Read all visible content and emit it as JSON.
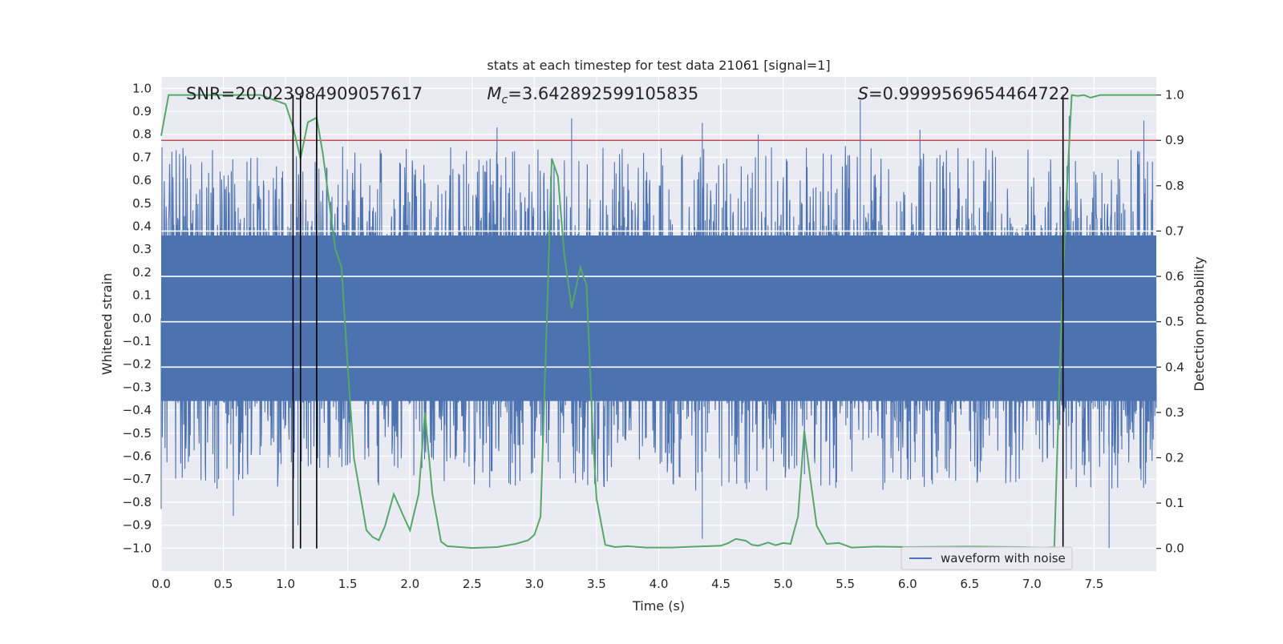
{
  "chart_data": {
    "type": "line",
    "title": "stats at each timestep for test data 21061 [signal=1]",
    "xlabel": "Time (s)",
    "ylabel": "Whitened strain",
    "y2label": "Detection probability",
    "xlim": [
      0.0,
      8.0
    ],
    "ylim": [
      -1.1,
      1.05
    ],
    "y2lim": [
      -0.05,
      1.04
    ],
    "xticks": [
      0.0,
      0.5,
      1.0,
      1.5,
      2.0,
      2.5,
      3.0,
      3.5,
      4.0,
      4.5,
      5.0,
      5.5,
      6.0,
      6.5,
      7.0,
      7.5
    ],
    "xtick_labels": [
      "0.0",
      "0.5",
      "1.0",
      "1.5",
      "2.0",
      "2.5",
      "3.0",
      "3.5",
      "4.0",
      "4.5",
      "5.0",
      "5.5",
      "6.0",
      "6.5",
      "7.0",
      "7.5"
    ],
    "yticks": [
      1.0,
      0.9,
      0.8,
      0.7,
      0.6,
      0.5,
      0.4,
      0.3,
      0.2,
      0.1,
      0.0,
      -0.1,
      -0.2,
      -0.3,
      -0.4,
      -0.5,
      -0.6,
      -0.7,
      -0.8,
      -0.9,
      -1.0
    ],
    "ytick_labels": [
      "1.0",
      "0.9",
      "0.8",
      "0.7",
      "0.6",
      "0.5",
      "0.4",
      "0.3",
      "0.2",
      "0.1",
      "0.0",
      "−0.1",
      "−0.2",
      "−0.3",
      "−0.4",
      "−0.5",
      "−0.6",
      "−0.7",
      "−0.8",
      "−0.9",
      "−1.0"
    ],
    "y2ticks": [
      1.0,
      0.9,
      0.8,
      0.7,
      0.6,
      0.5,
      0.4,
      0.3,
      0.2,
      0.1,
      0.0
    ],
    "y2tick_labels": [
      "1.0",
      "0.9",
      "0.8",
      "0.7",
      "0.6",
      "0.5",
      "0.4",
      "0.3",
      "0.2",
      "0.1",
      "0.0"
    ],
    "legend": {
      "entries": [
        "waveform with noise"
      ],
      "placement": "lower-right"
    },
    "annotations": {
      "snr": "SNR=20.023984909057617",
      "mc_symbol": "M",
      "mc_sub": "c",
      "mc_value": "=3.642892599105835",
      "s_symbol": "S",
      "s_value": "=0.9999569654464722"
    },
    "threshold": {
      "axis": "y2",
      "value": 0.9,
      "color": "#c44e52"
    },
    "vertical_markers": [
      1.06,
      1.12,
      1.25,
      7.25
    ],
    "marker_range_y2": [
      0.0,
      1.0
    ],
    "waveform": {
      "name": "waveform with noise",
      "color": "#4c72b0",
      "core_amplitude": 0.36,
      "spike_max": 0.75,
      "peak_spikes": [
        {
          "x": 3.3,
          "y": 0.87
        },
        {
          "x": 4.35,
          "y": 0.85
        },
        {
          "x": 4.35,
          "y": -0.96
        },
        {
          "x": 5.62,
          "y": 0.95
        },
        {
          "x": 1.25,
          "y": 0.85
        },
        {
          "x": 7.3,
          "y": 0.88
        },
        {
          "x": 7.9,
          "y": 0.86
        },
        {
          "x": 7.62,
          "y": -1.0
        },
        {
          "x": 1.1,
          "y": -0.9
        },
        {
          "x": 0.58,
          "y": -0.86
        },
        {
          "x": 4.8,
          "y": 0.8
        },
        {
          "x": 6.1,
          "y": 0.82
        },
        {
          "x": 2.7,
          "y": 0.83
        },
        {
          "x": 0.0,
          "y": -0.83
        }
      ]
    },
    "probability": {
      "color": "#55a868",
      "x": [
        0.0,
        0.06,
        0.2,
        0.4,
        0.6,
        0.8,
        0.9,
        1.0,
        1.06,
        1.12,
        1.18,
        1.25,
        1.3,
        1.4,
        1.45,
        1.5,
        1.55,
        1.6,
        1.65,
        1.7,
        1.75,
        1.8,
        1.87,
        1.95,
        2.0,
        2.07,
        2.12,
        2.18,
        2.25,
        2.3,
        2.5,
        2.7,
        2.85,
        2.95,
        3.0,
        3.05,
        3.1,
        3.14,
        3.19,
        3.24,
        3.3,
        3.37,
        3.42,
        3.47,
        3.5,
        3.57,
        3.65,
        3.75,
        3.9,
        4.1,
        4.3,
        4.5,
        4.56,
        4.62,
        4.7,
        4.75,
        4.8,
        4.88,
        4.94,
        5.0,
        5.06,
        5.12,
        5.17,
        5.22,
        5.27,
        5.35,
        5.45,
        5.55,
        5.75,
        6.0,
        6.5,
        6.9,
        7.1,
        7.18,
        7.23,
        7.27,
        7.32,
        7.37,
        7.42,
        7.47,
        7.55,
        8.0
      ],
      "y": [
        0.91,
        1.0,
        1.0,
        1.0,
        1.0,
        1.0,
        0.99,
        0.98,
        0.93,
        0.86,
        0.94,
        0.95,
        0.87,
        0.66,
        0.62,
        0.4,
        0.2,
        0.12,
        0.04,
        0.025,
        0.018,
        0.05,
        0.12,
        0.07,
        0.04,
        0.12,
        0.3,
        0.12,
        0.015,
        0.005,
        0.001,
        0.003,
        0.01,
        0.018,
        0.03,
        0.07,
        0.5,
        0.86,
        0.82,
        0.65,
        0.53,
        0.62,
        0.58,
        0.25,
        0.11,
        0.008,
        0.003,
        0.005,
        0.002,
        0.002,
        0.004,
        0.006,
        0.012,
        0.021,
        0.017,
        0.008,
        0.006,
        0.013,
        0.007,
        0.012,
        0.01,
        0.07,
        0.26,
        0.15,
        0.05,
        0.01,
        0.012,
        0.002,
        0.004,
        0.003,
        0.004,
        0.003,
        0.002,
        0.003,
        0.45,
        0.73,
        1.0,
        0.998,
        1.0,
        0.994,
        1.0,
        1.0
      ]
    }
  }
}
